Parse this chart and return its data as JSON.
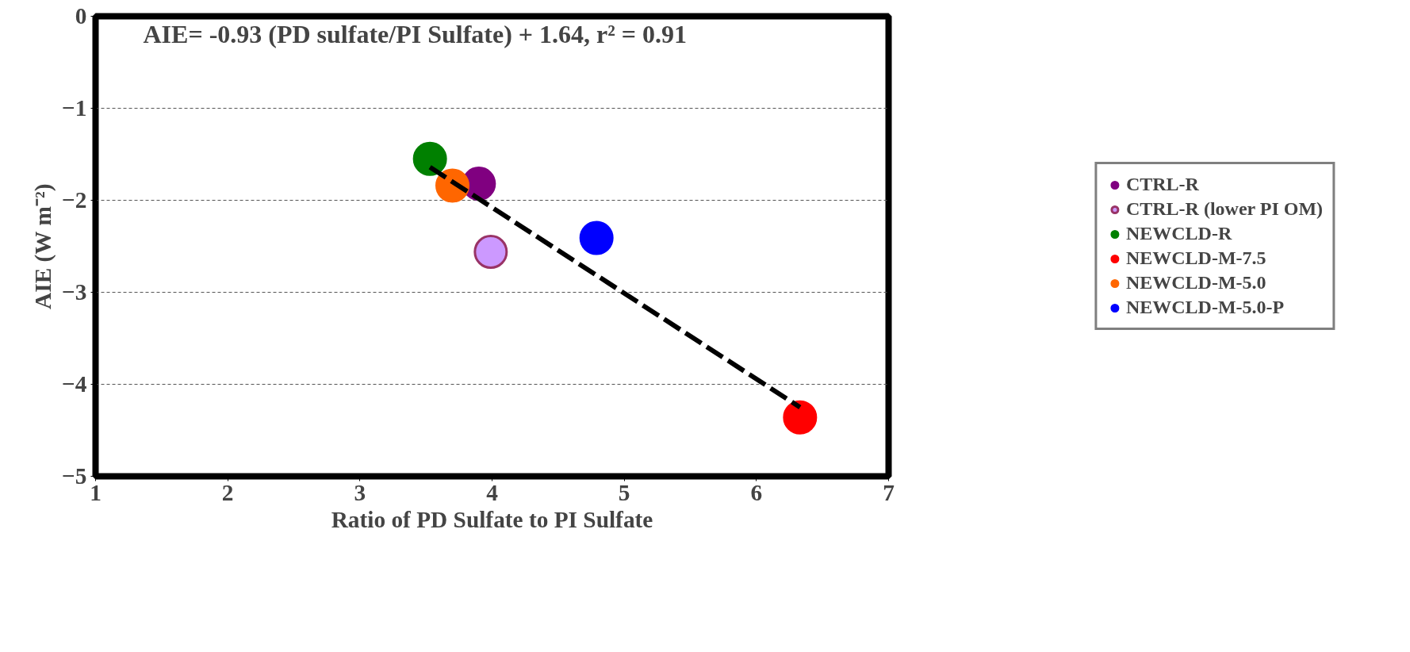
{
  "chart_data": {
    "type": "scatter",
    "xlabel": "Ratio of PD Sulfate to PI Sulfate",
    "ylabel": "AIE (W m⁻²)",
    "annotations": [
      "AIE= -0.93 (PD sulfate/PI Sulfate) + 1.64, r² = 0.91"
    ],
    "xlim": [
      1,
      7
    ],
    "xticks": [
      1,
      2,
      3,
      4,
      5,
      6,
      7
    ],
    "ylim": [
      -5,
      0
    ],
    "yticks": [
      -5,
      -4,
      -3,
      -2,
      -1,
      0
    ],
    "grid": "y",
    "legend": "right",
    "marker": "circle",
    "series": [
      {
        "name": "CTRL-R",
        "color": "#800080",
        "x": [
          3.9
        ],
        "values": [
          -1.82
        ]
      },
      {
        "name": "CTRL-R (lower PI OM)",
        "color": "#cc99ff",
        "x": [
          3.99
        ],
        "values": [
          -2.56
        ]
      },
      {
        "name": "NEWCLD-R",
        "color": "#008000",
        "x": [
          3.53
        ],
        "values": [
          -1.55
        ]
      },
      {
        "name": "NEWCLD-M-7.5",
        "color": "#ff0000",
        "x": [
          6.33
        ],
        "values": [
          -4.36
        ]
      },
      {
        "name": "NEWCLD-M-5.0",
        "color": "#ff6600",
        "x": [
          3.7
        ],
        "values": [
          -1.84
        ]
      },
      {
        "name": "NEWCLD-M-5.0-P",
        "color": "#0000ff",
        "x": [
          4.79
        ],
        "values": [
          -2.41
        ]
      },
      {
        "type": "line",
        "color": "#000000",
        "line_style": "dashed",
        "marker": "none",
        "x": [
          3.53,
          6.33
        ],
        "values": [
          -1.64,
          -4.25
        ]
      }
    ]
  }
}
